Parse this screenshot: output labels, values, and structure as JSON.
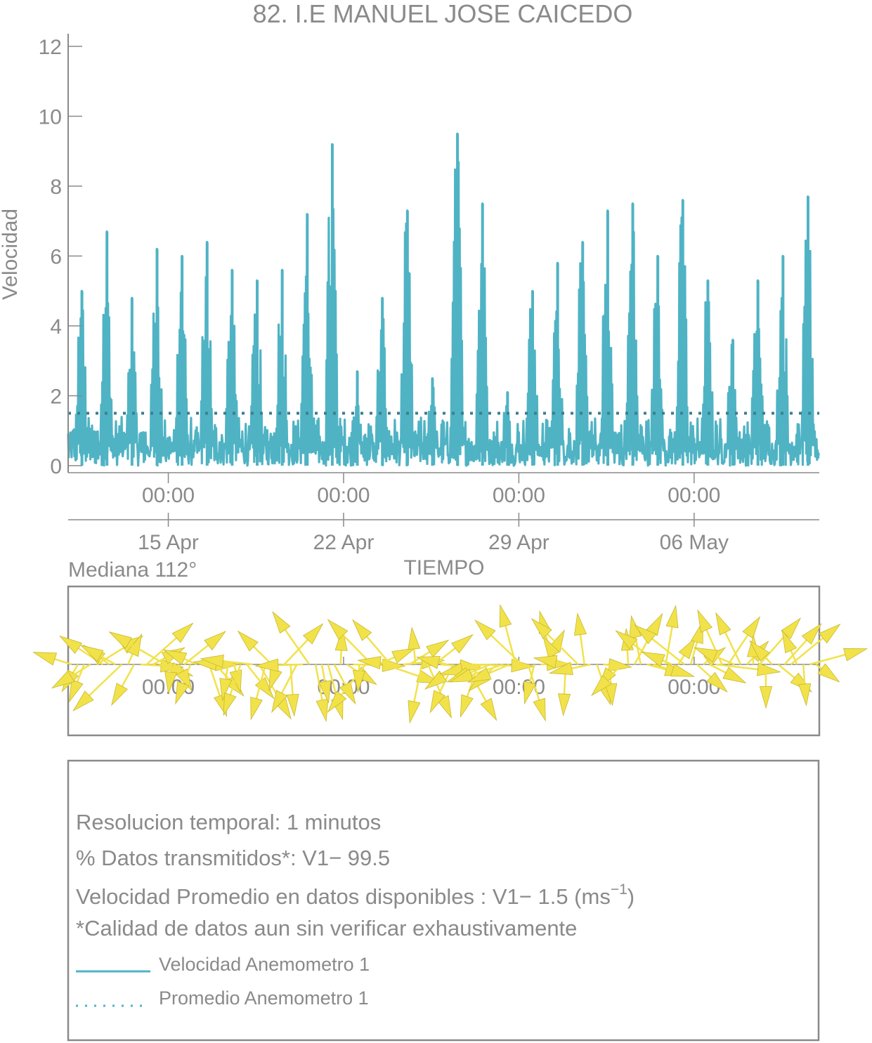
{
  "chart_data": [
    {
      "type": "line",
      "title": "82. I.E MANUEL JOSE CAICEDO",
      "xlabel": "TIEMPO",
      "ylabel": "Velocidad",
      "ylim": [
        0,
        12
      ],
      "yticks": [
        "0",
        "2",
        "4",
        "6",
        "8",
        "10",
        "12"
      ],
      "x_time_ticks": [
        "00:00",
        "00:00",
        "00:00",
        "00:00"
      ],
      "x_date_ticks": [
        "15 Apr",
        "22 Apr",
        "29 Apr",
        "06 May"
      ],
      "x_start": "2024-04-11",
      "x_end": "2024-05-11",
      "grid": false,
      "series": [
        {
          "name": "Velocidad Anemometro 1",
          "color": "#4fb3c4",
          "style": "solid",
          "peaks": [
            {
              "x": "2024-04-11",
              "value": 5.0
            },
            {
              "x": "2024-04-12",
              "value": 6.7
            },
            {
              "x": "2024-04-13",
              "value": 4.8
            },
            {
              "x": "2024-04-14",
              "value": 6.2
            },
            {
              "x": "2024-04-15",
              "value": 6.0
            },
            {
              "x": "2024-04-16",
              "value": 6.4
            },
            {
              "x": "2024-04-17",
              "value": 5.6
            },
            {
              "x": "2024-04-18",
              "value": 5.3
            },
            {
              "x": "2024-04-19",
              "value": 5.6
            },
            {
              "x": "2024-04-20",
              "value": 7.2
            },
            {
              "x": "2024-04-21",
              "value": 9.2
            },
            {
              "x": "2024-04-22",
              "value": 2.7
            },
            {
              "x": "2024-04-23",
              "value": 4.8
            },
            {
              "x": "2024-04-24",
              "value": 7.3
            },
            {
              "x": "2024-04-25",
              "value": 2.5
            },
            {
              "x": "2024-04-26",
              "value": 9.5
            },
            {
              "x": "2024-04-27",
              "value": 7.5
            },
            {
              "x": "2024-04-28",
              "value": 2.1
            },
            {
              "x": "2024-04-29",
              "value": 5.0
            },
            {
              "x": "2024-04-30",
              "value": 5.8
            },
            {
              "x": "2024-05-01",
              "value": 6.4
            },
            {
              "x": "2024-05-02",
              "value": 7.3
            },
            {
              "x": "2024-05-03",
              "value": 7.5
            },
            {
              "x": "2024-05-04",
              "value": 6.0
            },
            {
              "x": "2024-05-05",
              "value": 7.6
            },
            {
              "x": "2024-05-06",
              "value": 5.3
            },
            {
              "x": "2024-05-07",
              "value": 3.6
            },
            {
              "x": "2024-05-08",
              "value": 5.3
            },
            {
              "x": "2024-05-09",
              "value": 6.0
            },
            {
              "x": "2024-05-10",
              "value": 7.7
            }
          ]
        },
        {
          "name": "Promedio Anemometro 1",
          "color": "#3a7f8e",
          "style": "dotted",
          "value": 1.5
        }
      ]
    },
    {
      "type": "vector",
      "title": "Mediana 112°",
      "x_time_ticks": [
        "00:00",
        "00:00",
        "00:00",
        "00:00"
      ],
      "arrow_color": "#f2e24a",
      "median_direction_deg": 112
    }
  ],
  "info": {
    "lines": [
      "Resolucion temporal: 1 minutos",
      "% Datos transmitidos*: V1− 99.5"
    ],
    "velocity_prefix": "Velocidad Promedio en datos disponibles : V1−  1.5 (ms",
    "velocity_exponent": "−1",
    "velocity_suffix": ")",
    "note": "*Calidad de datos aun sin verificar exhaustivamente"
  },
  "legend": [
    {
      "label": "Velocidad Anemometro 1",
      "style": "solid",
      "color": "#4fb3c4"
    },
    {
      "label": "Promedio Anemometro 1",
      "style": "dotted",
      "color": "#4fb3c4"
    }
  ]
}
